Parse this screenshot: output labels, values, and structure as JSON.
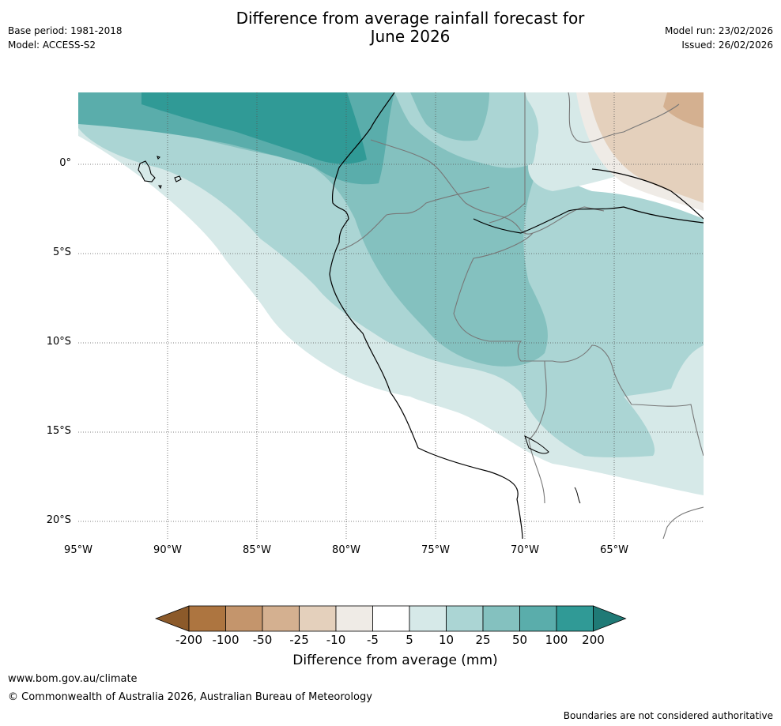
{
  "header": {
    "title_line1": "Difference from average rainfall forecast for",
    "title_line2": "June 2026",
    "base_period": "Base period: 1981-2018",
    "model": "Model: ACCESS-S2",
    "model_run": "Model run: 23/02/2026",
    "issued": "Issued: 26/02/2026"
  },
  "map": {
    "lat_labels": [
      "0°",
      "5°S",
      "10°S",
      "15°S",
      "20°S"
    ],
    "lon_labels": [
      "95°W",
      "90°W",
      "85°W",
      "80°W",
      "75°W",
      "70°W",
      "65°W"
    ]
  },
  "legend": {
    "title": "Difference from average (mm)",
    "ticks": [
      "-200",
      "-100",
      "-50",
      "-25",
      "-10",
      "-5",
      "5",
      "10",
      "25",
      "50",
      "100",
      "200"
    ],
    "colors": [
      "#8c5a2a",
      "#ad7540",
      "#c4956c",
      "#d4b090",
      "#e4d0bc",
      "#efebe6",
      "#ffffff",
      "#d6e9e8",
      "#abd5d4",
      "#84c1bf",
      "#5aadab",
      "#309a96",
      "#1f7a76"
    ]
  },
  "footer": {
    "website": "www.bom.gov.au/climate",
    "copyright": "© Commonwealth of Australia 2026, Australian Bureau of Meteorology",
    "disclaimer": "Boundaries are not considered authoritative"
  }
}
